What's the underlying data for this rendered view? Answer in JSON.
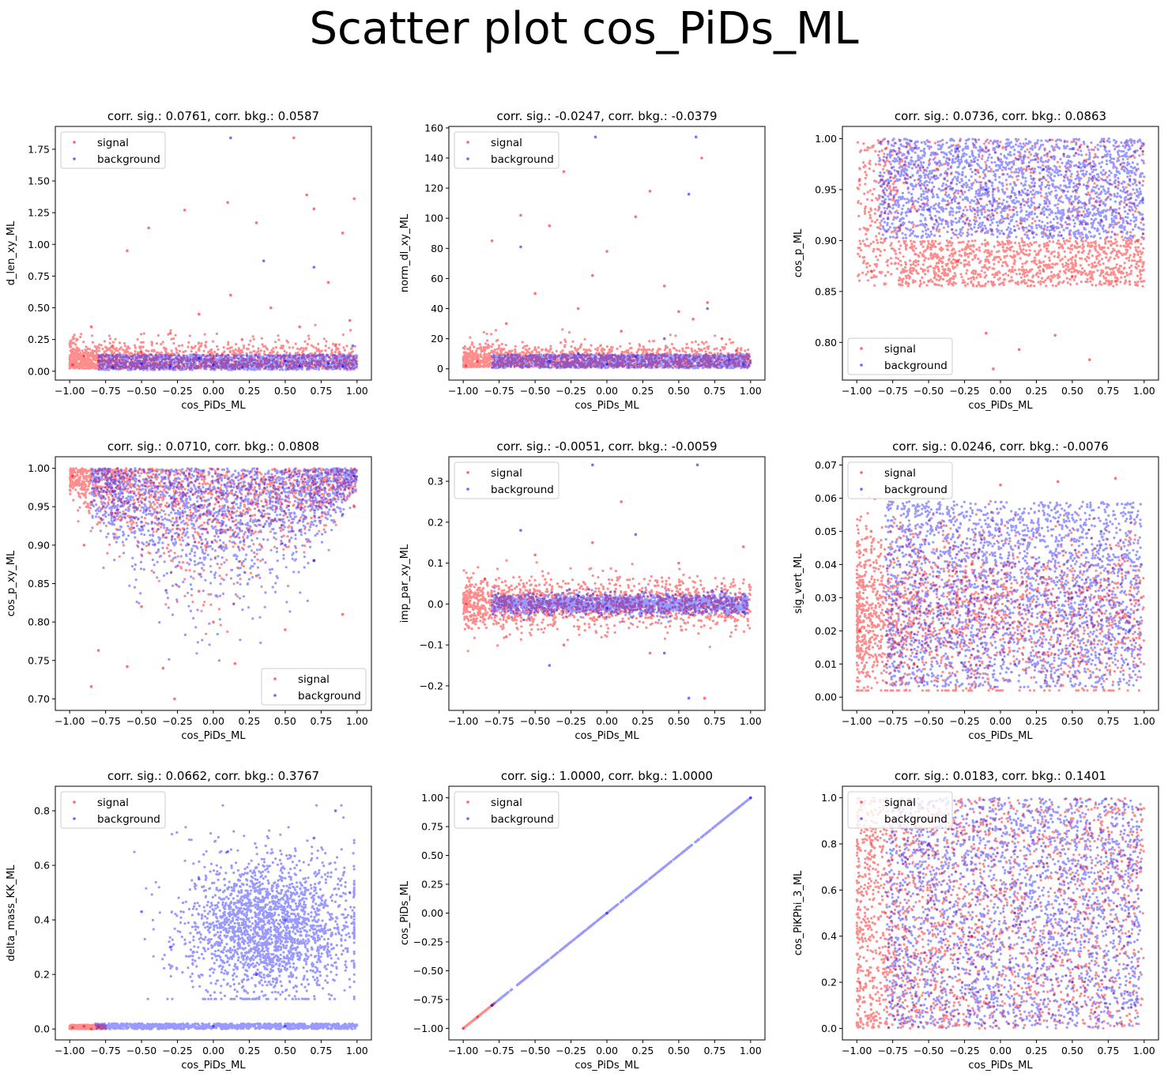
{
  "figure": {
    "title": "Scatter plot cos_PiDs_ML"
  },
  "colors": {
    "signal": "#ff0000",
    "background": "#0000ff"
  },
  "chart_data": [
    {
      "type": "scatter",
      "title": "corr. sig.: 0.0761, corr. bkg.: 0.0587",
      "xlabel": "cos_PiDs_ML",
      "ylabel": "d_len_xy_ML",
      "xlim": [
        -1.1,
        1.1
      ],
      "ylim": [
        -0.07,
        1.93
      ],
      "xticks": [
        -1.0,
        -0.75,
        -0.5,
        -0.25,
        0.0,
        0.25,
        0.5,
        0.75,
        1.0
      ],
      "xtick_labels": [
        "−1.00",
        "−0.75",
        "−0.50",
        "−0.25",
        "0.00",
        "0.25",
        "0.50",
        "0.75",
        "1.00"
      ],
      "yticks": [
        0.0,
        0.25,
        0.5,
        0.75,
        1.0,
        1.25,
        1.5,
        1.75
      ],
      "ytick_labels": [
        "0.00",
        "0.25",
        "0.50",
        "0.75",
        "1.00",
        "1.25",
        "1.50",
        "1.75"
      ],
      "legend": {
        "position": "upper-left",
        "entries": [
          "signal",
          "background"
        ]
      },
      "series": [
        {
          "name": "signal",
          "color": "#ff0000",
          "x": [
            -0.98,
            -0.9,
            -0.85,
            -0.8,
            -0.7,
            -0.6,
            -0.5,
            -0.45,
            -0.3,
            -0.2,
            -0.1,
            0.0,
            0.1,
            0.12,
            0.2,
            0.3,
            0.4,
            0.5,
            0.56,
            0.6,
            0.65,
            0.7,
            0.8,
            0.85,
            0.9,
            0.95,
            0.98
          ],
          "y": [
            0.05,
            0.12,
            0.35,
            0.08,
            0.2,
            0.95,
            0.15,
            1.13,
            0.3,
            1.27,
            0.45,
            0.1,
            1.33,
            0.6,
            0.25,
            1.17,
            0.5,
            0.12,
            1.84,
            0.35,
            1.39,
            1.28,
            0.7,
            0.2,
            1.09,
            0.4,
            1.36
          ]
        },
        {
          "name": "background",
          "color": "#0000ff",
          "x": [
            -0.7,
            -0.5,
            -0.3,
            -0.1,
            0.0,
            0.12,
            0.2,
            0.35,
            0.5,
            0.6,
            0.7,
            0.8,
            0.9,
            0.97
          ],
          "y": [
            0.03,
            0.06,
            0.04,
            0.1,
            0.05,
            1.84,
            0.03,
            0.87,
            0.08,
            0.04,
            0.82,
            0.06,
            0.04,
            0.2
          ]
        }
      ]
    },
    {
      "type": "scatter",
      "title": "corr. sig.: -0.0247, corr. bkg.: -0.0379",
      "xlabel": "cos_PiDs_ML",
      "ylabel": "norm_dl_xy_ML",
      "xlim": [
        -1.1,
        1.1
      ],
      "ylim": [
        -7.5,
        161
      ],
      "xticks": [
        -1.0,
        -0.75,
        -0.5,
        -0.25,
        0.0,
        0.25,
        0.5,
        0.75,
        1.0
      ],
      "xtick_labels": [
        "−1.00",
        "−0.75",
        "−0.50",
        "−0.25",
        "0.00",
        "0.25",
        "0.50",
        "0.75",
        "1.00"
      ],
      "yticks": [
        0,
        20,
        40,
        60,
        80,
        100,
        120,
        140,
        160
      ],
      "ytick_labels": [
        "0",
        "20",
        "40",
        "60",
        "80",
        "100",
        "120",
        "140",
        "160"
      ],
      "legend": {
        "position": "upper-left",
        "entries": [
          "signal",
          "background"
        ]
      },
      "series": [
        {
          "name": "signal",
          "color": "#ff0000",
          "x": [
            -0.98,
            -0.9,
            -0.8,
            -0.7,
            -0.6,
            -0.5,
            -0.4,
            -0.3,
            -0.2,
            -0.1,
            0.0,
            0.1,
            0.2,
            0.3,
            0.4,
            0.5,
            0.6,
            0.66,
            0.7,
            0.8,
            0.9,
            0.97
          ],
          "y": [
            2,
            5,
            85,
            30,
            102,
            50,
            95,
            131,
            40,
            62,
            78,
            25,
            101,
            118,
            55,
            38,
            33,
            140,
            44,
            20,
            12,
            8
          ]
        },
        {
          "name": "background",
          "color": "#0000ff",
          "x": [
            -0.6,
            -0.4,
            -0.2,
            -0.08,
            0.0,
            0.2,
            0.4,
            0.57,
            0.62,
            0.7,
            0.85,
            0.95
          ],
          "y": [
            81,
            5,
            10,
            154,
            3,
            8,
            20,
            116,
            154,
            40,
            6,
            3
          ]
        }
      ]
    },
    {
      "type": "scatter",
      "title": "corr. sig.: 0.0736, corr. bkg.: 0.0863",
      "xlabel": "cos_PiDs_ML",
      "ylabel": "cos_p_ML",
      "xlim": [
        -1.1,
        1.1
      ],
      "ylim": [
        0.763,
        1.012
      ],
      "xticks": [
        -1.0,
        -0.75,
        -0.5,
        -0.25,
        0.0,
        0.25,
        0.5,
        0.75,
        1.0
      ],
      "xtick_labels": [
        "−1.00",
        "−0.75",
        "−0.50",
        "−0.25",
        "0.00",
        "0.25",
        "0.50",
        "0.75",
        "1.00"
      ],
      "yticks": [
        0.8,
        0.85,
        0.9,
        0.95,
        1.0
      ],
      "ytick_labels": [
        "0.80",
        "0.85",
        "0.90",
        "0.95",
        "1.00"
      ],
      "legend": {
        "position": "lower-left",
        "entries": [
          "signal",
          "background"
        ]
      },
      "series": [
        {
          "name": "signal",
          "color": "#ff0000",
          "x": [
            -0.98,
            -0.9,
            -0.8,
            -0.7,
            -0.5,
            -0.3,
            -0.1,
            -0.05,
            0.13,
            0.3,
            0.38,
            0.5,
            0.62,
            0.8,
            0.95
          ],
          "y": [
            0.96,
            0.87,
            0.99,
            0.91,
            0.86,
            0.88,
            0.809,
            0.774,
            0.793,
            0.87,
            0.807,
            0.865,
            0.783,
            0.86,
            0.9
          ]
        },
        {
          "name": "background",
          "color": "#0000ff",
          "x": [
            -0.7,
            -0.5,
            -0.3,
            -0.1,
            0.1,
            0.3,
            0.5,
            0.7,
            0.9,
            0.99
          ],
          "y": [
            0.98,
            0.93,
            0.99,
            0.95,
            0.91,
            0.97,
            0.99,
            0.92,
            0.96,
            0.94
          ]
        }
      ]
    },
    {
      "type": "scatter",
      "title": "corr. sig.: 0.0710, corr. bkg.: 0.0808",
      "xlabel": "cos_PiDs_ML",
      "ylabel": "cos_p_xy_ML",
      "xlim": [
        -1.1,
        1.1
      ],
      "ylim": [
        0.685,
        1.015
      ],
      "xticks": [
        -1.0,
        -0.75,
        -0.5,
        -0.25,
        0.0,
        0.25,
        0.5,
        0.75,
        1.0
      ],
      "xtick_labels": [
        "−1.00",
        "−0.75",
        "−0.50",
        "−0.25",
        "0.00",
        "0.25",
        "0.50",
        "0.75",
        "1.00"
      ],
      "yticks": [
        0.7,
        0.75,
        0.8,
        0.85,
        0.9,
        0.95,
        1.0
      ],
      "ytick_labels": [
        "0.70",
        "0.75",
        "0.80",
        "0.85",
        "0.90",
        "0.95",
        "1.00"
      ],
      "legend": {
        "position": "lower-right",
        "entries": [
          "signal",
          "background"
        ]
      },
      "series": [
        {
          "name": "signal",
          "color": "#ff0000",
          "x": [
            -0.98,
            -0.9,
            -0.85,
            -0.8,
            -0.6,
            -0.5,
            -0.35,
            -0.27,
            -0.1,
            0.0,
            0.15,
            0.3,
            0.5,
            0.7,
            0.9,
            0.98
          ],
          "y": [
            0.99,
            0.9,
            0.716,
            0.763,
            0.742,
            0.82,
            0.74,
            0.7,
            0.84,
            0.8,
            0.746,
            0.86,
            0.79,
            0.88,
            0.81,
            0.95
          ]
        },
        {
          "name": "background",
          "color": "#0000ff",
          "x": [
            -0.7,
            -0.5,
            -0.3,
            -0.1,
            0.1,
            0.3,
            0.5,
            0.7,
            0.9,
            0.98
          ],
          "y": [
            0.97,
            0.93,
            0.98,
            0.95,
            0.92,
            0.97,
            0.9,
            0.88,
            0.94,
            0.99
          ]
        }
      ]
    },
    {
      "type": "scatter",
      "title": "corr. sig.: -0.0051, corr. bkg.: -0.0059",
      "xlabel": "cos_PiDs_ML",
      "ylabel": "imp_par_xy_ML",
      "xlim": [
        -1.1,
        1.1
      ],
      "ylim": [
        -0.26,
        0.36
      ],
      "xticks": [
        -1.0,
        -0.75,
        -0.5,
        -0.25,
        0.0,
        0.25,
        0.5,
        0.75,
        1.0
      ],
      "xtick_labels": [
        "−1.00",
        "−0.75",
        "−0.50",
        "−0.25",
        "0.00",
        "0.25",
        "0.50",
        "0.75",
        "1.00"
      ],
      "yticks": [
        -0.2,
        -0.1,
        0.0,
        0.1,
        0.2,
        0.3
      ],
      "ytick_labels": [
        "−0.2",
        "−0.1",
        "0.0",
        "0.1",
        "0.2",
        "0.3"
      ],
      "legend": {
        "position": "upper-left",
        "entries": [
          "signal",
          "background"
        ]
      },
      "series": [
        {
          "name": "signal",
          "color": "#ff0000",
          "x": [
            -0.98,
            -0.85,
            -0.7,
            -0.5,
            -0.3,
            -0.1,
            0.1,
            0.3,
            0.5,
            0.68,
            0.8,
            0.95
          ],
          "y": [
            0.0,
            0.06,
            -0.08,
            0.12,
            -0.1,
            0.15,
            0.25,
            -0.12,
            0.1,
            -0.23,
            0.05,
            0.14
          ]
        },
        {
          "name": "background",
          "color": "#0000ff",
          "x": [
            -0.6,
            -0.4,
            -0.2,
            -0.1,
            0.0,
            0.2,
            0.4,
            0.57,
            0.63,
            0.8,
            0.95
          ],
          "y": [
            0.18,
            -0.15,
            0.02,
            0.34,
            -0.01,
            0.17,
            -0.12,
            -0.23,
            0.34,
            0.03,
            -0.02
          ]
        }
      ]
    },
    {
      "type": "scatter",
      "title": "corr. sig.: 0.0246, corr. bkg.: -0.0076",
      "xlabel": "cos_PiDs_ML",
      "ylabel": "sig_vert_ML",
      "xlim": [
        -1.1,
        1.1
      ],
      "ylim": [
        -0.004,
        0.0725
      ],
      "xticks": [
        -1.0,
        -0.75,
        -0.5,
        -0.25,
        0.0,
        0.25,
        0.5,
        0.75,
        1.0
      ],
      "xtick_labels": [
        "−1.00",
        "−0.75",
        "−0.50",
        "−0.25",
        "0.00",
        "0.25",
        "0.50",
        "0.75",
        "1.00"
      ],
      "yticks": [
        0.0,
        0.01,
        0.02,
        0.03,
        0.04,
        0.05,
        0.06,
        0.07
      ],
      "ytick_labels": [
        "0.00",
        "0.01",
        "0.02",
        "0.03",
        "0.04",
        "0.05",
        "0.06",
        "0.07"
      ],
      "legend": {
        "position": "upper-left",
        "entries": [
          "signal",
          "background"
        ]
      },
      "series": [
        {
          "name": "signal",
          "color": "#ff0000",
          "x": [
            -0.98,
            -0.9,
            -0.8,
            -0.6,
            -0.4,
            -0.2,
            0.0,
            0.2,
            0.4,
            0.6,
            0.8,
            0.98
          ],
          "y": [
            0.02,
            0.05,
            0.03,
            0.01,
            0.06,
            0.04,
            0.064,
            0.02,
            0.065,
            0.01,
            0.066,
            0.03
          ]
        },
        {
          "name": "background",
          "color": "#0000ff",
          "x": [
            -0.7,
            -0.5,
            -0.3,
            -0.1,
            0.1,
            0.3,
            0.5,
            0.7,
            0.9,
            0.98
          ],
          "y": [
            0.04,
            0.02,
            0.05,
            0.03,
            0.01,
            0.04,
            0.03,
            0.05,
            0.02,
            0.04
          ]
        }
      ]
    },
    {
      "type": "scatter",
      "title": "corr. sig.: 0.0662, corr. bkg.: 0.3767",
      "xlabel": "cos_PiDs_ML",
      "ylabel": "delta_mass_KK_ML",
      "xlim": [
        -1.1,
        1.1
      ],
      "ylim": [
        -0.04,
        0.89
      ],
      "xticks": [
        -1.0,
        -0.75,
        -0.5,
        -0.25,
        0.0,
        0.25,
        0.5,
        0.75,
        1.0
      ],
      "xtick_labels": [
        "−1.00",
        "−0.75",
        "−0.50",
        "−0.25",
        "0.00",
        "0.25",
        "0.50",
        "0.75",
        "1.00"
      ],
      "yticks": [
        0.0,
        0.2,
        0.4,
        0.6,
        0.8
      ],
      "ytick_labels": [
        "0.0",
        "0.2",
        "0.4",
        "0.6",
        "0.8"
      ],
      "legend": {
        "position": "upper-left",
        "entries": [
          "signal",
          "background"
        ]
      },
      "series": [
        {
          "name": "signal",
          "color": "#ff0000",
          "x": [
            -0.98,
            -0.9,
            -0.85,
            -0.8
          ],
          "y": [
            0.005,
            0.01,
            0.0,
            0.008
          ]
        },
        {
          "name": "background",
          "color": "#0000ff",
          "x": [
            -0.5,
            -0.3,
            -0.1,
            0.1,
            0.3,
            0.5,
            0.7,
            0.85,
            0.95,
            0.0,
            0.5
          ],
          "y": [
            0.43,
            0.3,
            0.55,
            0.65,
            0.2,
            0.4,
            0.7,
            0.8,
            0.5,
            0.01,
            0.01
          ]
        }
      ]
    },
    {
      "type": "scatter",
      "title": "corr. sig.: 1.0000, corr. bkg.: 1.0000",
      "xlabel": "cos_PiDs_ML",
      "ylabel": "cos_PiDs_ML",
      "xlim": [
        -1.1,
        1.1
      ],
      "ylim": [
        -1.1,
        1.1
      ],
      "xticks": [
        -1.0,
        -0.75,
        -0.5,
        -0.25,
        0.0,
        0.25,
        0.5,
        0.75,
        1.0
      ],
      "xtick_labels": [
        "−1.00",
        "−0.75",
        "−0.50",
        "−0.25",
        "0.00",
        "0.25",
        "0.50",
        "0.75",
        "1.00"
      ],
      "yticks": [
        -1.0,
        -0.75,
        -0.5,
        -0.25,
        0.0,
        0.25,
        0.5,
        0.75,
        1.0
      ],
      "ytick_labels": [
        "−1.00",
        "−0.75",
        "−0.50",
        "−0.25",
        "0.00",
        "0.25",
        "0.50",
        "0.75",
        "1.00"
      ],
      "legend": {
        "position": "upper-left",
        "entries": [
          "signal",
          "background"
        ]
      },
      "series": [
        {
          "name": "signal",
          "color": "#ff0000",
          "x": [
            -1.0,
            -0.9,
            -0.8
          ],
          "y": [
            -1.0,
            -0.9,
            -0.8
          ]
        },
        {
          "name": "background",
          "color": "#0000ff",
          "x": [
            -0.8,
            0.0,
            1.0
          ],
          "y": [
            -0.8,
            0.0,
            1.0
          ]
        }
      ]
    },
    {
      "type": "scatter",
      "title": "corr. sig.: 0.0183, corr. bkg.: 0.1401",
      "xlabel": "cos_PiDs_ML",
      "ylabel": "cos_PiKPhi_3_ML",
      "xlim": [
        -1.1,
        1.1
      ],
      "ylim": [
        -0.05,
        1.05
      ],
      "xticks": [
        -1.0,
        -0.75,
        -0.5,
        -0.25,
        0.0,
        0.25,
        0.5,
        0.75,
        1.0
      ],
      "xtick_labels": [
        "−1.00",
        "−0.75",
        "−0.50",
        "−0.25",
        "0.00",
        "0.25",
        "0.50",
        "0.75",
        "1.00"
      ],
      "yticks": [
        0.0,
        0.2,
        0.4,
        0.6,
        0.8,
        1.0
      ],
      "ytick_labels": [
        "0.0",
        "0.2",
        "0.4",
        "0.6",
        "0.8",
        "1.0"
      ],
      "legend": {
        "position": "upper-left",
        "entries": [
          "signal",
          "background"
        ]
      },
      "series": [
        {
          "name": "signal",
          "color": "#ff0000",
          "x": [
            -0.98,
            -0.9,
            -0.8,
            -0.6,
            -0.4,
            -0.2,
            0.0,
            0.3,
            0.6,
            0.9,
            0.98
          ],
          "y": [
            0.2,
            0.8,
            0.5,
            0.1,
            0.9,
            0.4,
            0.6,
            0.3,
            0.7,
            0.2,
            0.95
          ]
        },
        {
          "name": "background",
          "color": "#0000ff",
          "x": [
            -0.7,
            -0.5,
            -0.3,
            -0.1,
            0.1,
            0.3,
            0.5,
            0.7,
            0.9,
            0.98
          ],
          "y": [
            0.6,
            0.8,
            0.3,
            0.9,
            0.5,
            0.7,
            0.2,
            0.85,
            0.4,
            0.6
          ]
        }
      ]
    }
  ]
}
